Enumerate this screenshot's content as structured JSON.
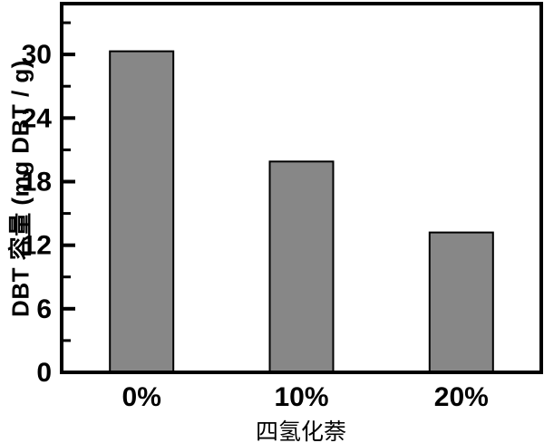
{
  "chart_data": {
    "type": "bar",
    "categories": [
      "0%",
      "10%",
      "20%"
    ],
    "values": [
      30.3,
      19.9,
      13.2
    ],
    "title": "",
    "xlabel": "四氢化萘",
    "ylabel": "DBT 容量 (mg DBT / g)",
    "ylim": [
      0,
      34.8
    ],
    "yticks": [
      0,
      6,
      12,
      18,
      24,
      30
    ],
    "minor_yticks": [
      3,
      9,
      15,
      21,
      27,
      33
    ],
    "grid": false,
    "legend_position": "none",
    "bar_color": "#878787",
    "bar_edge_color": "#000000",
    "axis_color": "#000000",
    "text_color": "#000000",
    "background_color": "#ffffff"
  }
}
